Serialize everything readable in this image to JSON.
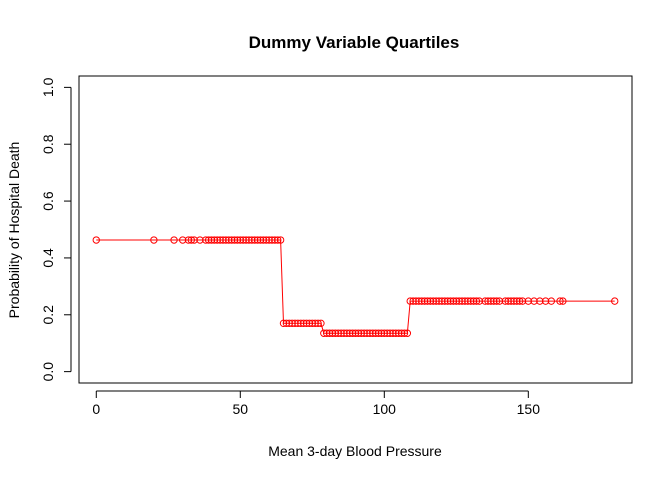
{
  "chart_data": {
    "type": "line",
    "title": "Dummy Variable Quartiles",
    "xlabel": "Mean 3-day Blood Pressure",
    "ylabel": "Probability of Hospital Death",
    "xlim": [
      -6,
      186
    ],
    "ylim": [
      -0.04,
      1.04
    ],
    "xticks": [
      0,
      50,
      100,
      150
    ],
    "yticks": [
      "0.0",
      "0.2",
      "0.4",
      "0.6",
      "0.8",
      "1.0"
    ],
    "grid": false,
    "legend": "none",
    "colors": {
      "series": "#ff0000",
      "axis": "#000000"
    },
    "series": [
      {
        "marker": "open-circle",
        "x": [
          0,
          20,
          27,
          30,
          32,
          33,
          34,
          36,
          38,
          39,
          40,
          41,
          42,
          43,
          44,
          45,
          46,
          47,
          48,
          49,
          50,
          51,
          52,
          53,
          54,
          55,
          56,
          57,
          58,
          59,
          60,
          61,
          62,
          63,
          64,
          65,
          66,
          67,
          68,
          69,
          70,
          71,
          72,
          73,
          74,
          75,
          76,
          77,
          78,
          79,
          80,
          81,
          82,
          83,
          84,
          85,
          86,
          87,
          88,
          89,
          90,
          91,
          92,
          93,
          94,
          95,
          96,
          97,
          98,
          99,
          100,
          101,
          102,
          103,
          104,
          105,
          106,
          107,
          108,
          109,
          110,
          111,
          112,
          113,
          114,
          115,
          116,
          117,
          118,
          119,
          120,
          121,
          122,
          123,
          124,
          125,
          126,
          127,
          128,
          129,
          130,
          131,
          132,
          133,
          135,
          136,
          137,
          138,
          139,
          140,
          142,
          143,
          144,
          145,
          146,
          147,
          148,
          150,
          152,
          154,
          156,
          158,
          161,
          162,
          180
        ],
        "y": [
          0.463,
          0.463,
          0.463,
          0.463,
          0.463,
          0.463,
          0.463,
          0.463,
          0.463,
          0.463,
          0.463,
          0.463,
          0.463,
          0.463,
          0.463,
          0.463,
          0.463,
          0.463,
          0.463,
          0.463,
          0.463,
          0.463,
          0.463,
          0.463,
          0.463,
          0.463,
          0.463,
          0.463,
          0.463,
          0.463,
          0.463,
          0.463,
          0.463,
          0.463,
          0.463,
          0.17,
          0.17,
          0.17,
          0.17,
          0.17,
          0.17,
          0.17,
          0.17,
          0.17,
          0.17,
          0.17,
          0.17,
          0.17,
          0.17,
          0.135,
          0.135,
          0.135,
          0.135,
          0.135,
          0.135,
          0.135,
          0.135,
          0.135,
          0.135,
          0.135,
          0.135,
          0.135,
          0.135,
          0.135,
          0.135,
          0.135,
          0.135,
          0.135,
          0.135,
          0.135,
          0.135,
          0.135,
          0.135,
          0.135,
          0.135,
          0.135,
          0.135,
          0.135,
          0.135,
          0.248,
          0.248,
          0.248,
          0.248,
          0.248,
          0.248,
          0.248,
          0.248,
          0.248,
          0.248,
          0.248,
          0.248,
          0.248,
          0.248,
          0.248,
          0.248,
          0.248,
          0.248,
          0.248,
          0.248,
          0.248,
          0.248,
          0.248,
          0.248,
          0.248,
          0.248,
          0.248,
          0.248,
          0.248,
          0.248,
          0.248,
          0.248,
          0.248,
          0.248,
          0.248,
          0.248,
          0.248,
          0.248,
          0.248,
          0.248,
          0.248,
          0.248,
          0.248,
          0.248,
          0.248,
          0.248
        ]
      }
    ]
  }
}
